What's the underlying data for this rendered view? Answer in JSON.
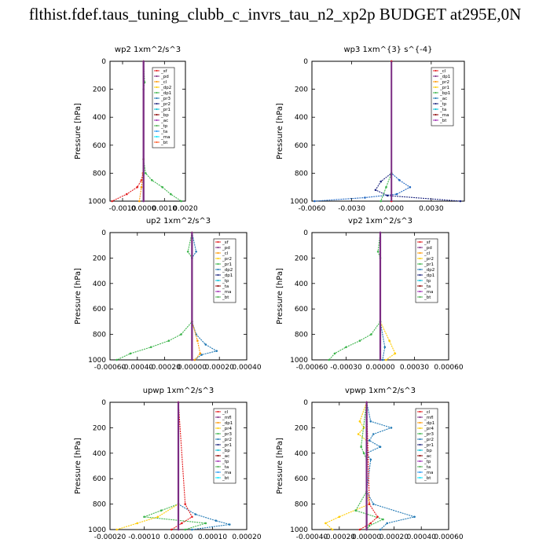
{
  "title": "flthist.fdef.taus_tuning_clubb_c_invrs_tau_n2_xp2p  BUDGET at295E,0N",
  "chart_data": [
    {
      "type": "line",
      "title": "wp2  1xm^2/s^3",
      "ylabel": "Pressure [hPa]",
      "ylim": [
        1000,
        0
      ],
      "yticks": [
        0,
        200,
        400,
        600,
        800,
        1000
      ],
      "xlim": [
        -0.0016,
        0.002
      ],
      "xticks": [
        -0.001,
        0.0,
        0.001,
        0.002
      ],
      "xtick_labels": [
        "-0.0010",
        "0.0000",
        "0.0010",
        "0.0020"
      ],
      "legend": [
        "_sf",
        "_pd",
        "_cl",
        "_dp2",
        "_dp1",
        "_pr3",
        "_pr2",
        "_pr1",
        "_bp",
        "_ac",
        "_tp",
        "_ta",
        "_ma",
        "_bt"
      ],
      "legend_position": "top-right",
      "series": [
        {
          "name": "_dp1",
          "color": "#e31a1c",
          "p": [
            0,
            700,
            800,
            850,
            900,
            950,
            1000
          ],
          "v": [
            0,
            0,
            -3e-05,
            -0.0001,
            -0.0003,
            -0.0008,
            -0.0015
          ]
        },
        {
          "name": "_pr2",
          "color": "#ff9900",
          "p": [
            0,
            700,
            800,
            900,
            1000
          ],
          "v": [
            0,
            0,
            -2e-05,
            -0.0001,
            -0.0002
          ]
        },
        {
          "name": "_pr1",
          "color": "#3cb44b",
          "p": [
            0,
            150,
            200,
            700,
            800,
            850,
            900,
            950,
            1000
          ],
          "v": [
            0,
            5e-05,
            0,
            0,
            0.0001,
            0.0004,
            0.0009,
            0.0013,
            0.0018
          ]
        },
        {
          "name": "_bt",
          "color": "#7b2c83",
          "p": [
            0,
            1000
          ],
          "v": [
            0,
            0
          ]
        }
      ]
    },
    {
      "type": "line",
      "title": "wp3  1xm^{3} s^{-4}",
      "ylabel": "Pressure [hPa]",
      "ylim": [
        1000,
        0
      ],
      "yticks": [
        0,
        200,
        400,
        600,
        800,
        1000
      ],
      "xlim": [
        -0.006,
        0.0055
      ],
      "xticks": [
        -0.006,
        -0.003,
        0.0,
        0.003
      ],
      "xtick_labels": [
        "-0.0060",
        "-0.0030",
        "0.0000",
        "0.0030"
      ],
      "legend": [
        "_cl",
        "_dp1",
        "_pr2",
        "_pr1",
        "_bp1",
        "_ac",
        "_tp",
        "_ta",
        "_ma",
        "_bt"
      ],
      "legend_position": "top-right",
      "series": [
        {
          "name": "_tp",
          "color": "#1f66c1",
          "p": [
            0,
            800,
            850,
            900,
            950,
            975,
            1000
          ],
          "v": [
            0,
            0,
            0.0006,
            0.0014,
            0.0004,
            -0.002,
            -0.0058
          ]
        },
        {
          "name": "_ta",
          "color": "#1a237e",
          "p": [
            0,
            800,
            860,
            920,
            960,
            1000
          ],
          "v": [
            0,
            0,
            -0.0008,
            -0.0012,
            -0.0003,
            0.0052
          ]
        },
        {
          "name": "_ac",
          "color": "#3cb44b",
          "p": [
            0,
            800,
            900,
            1000
          ],
          "v": [
            0,
            0,
            -0.0004,
            -0.0008
          ]
        },
        {
          "name": "_dp1",
          "color": "#e31a1c",
          "p": [
            0,
            1000
          ],
          "v": [
            0,
            0
          ]
        }
      ]
    },
    {
      "type": "line",
      "title": "up2  1xm^2/s^3",
      "ylabel": "Pressure [hPa]",
      "ylim": [
        1000,
        0
      ],
      "yticks": [
        0,
        200,
        400,
        600,
        800,
        1000
      ],
      "xlim": [
        -0.0006,
        0.0004
      ],
      "xticks": [
        -0.0006,
        -0.0004,
        -0.0002,
        0.0,
        0.0002,
        0.0004
      ],
      "xtick_labels": [
        "-0.00060",
        "-0.00040",
        "-0.00020",
        "0.00000",
        "0.00020",
        "0.00040"
      ],
      "legend": [
        "_sf",
        "_pd",
        "_cl",
        "_pr2",
        "_pr1",
        "_dp2",
        "_dp1",
        "_tp",
        "_ta",
        "_ma",
        "_bt"
      ],
      "legend_position": "top-right",
      "series": [
        {
          "name": "_dp1",
          "color": "#3cb44b",
          "p": [
            0,
            150,
            200,
            700,
            800,
            850,
            900,
            950,
            1000
          ],
          "v": [
            0,
            -3e-05,
            0,
            0,
            -8e-05,
            -0.00017,
            -0.0003,
            -0.00045,
            -0.00055
          ]
        },
        {
          "name": "_tp",
          "color": "#1f78b4",
          "p": [
            0,
            150,
            200,
            700,
            800,
            880,
            930,
            960,
            1000
          ],
          "v": [
            0,
            3e-05,
            0,
            0,
            3e-05,
            0.0001,
            0.00018,
            7e-05,
            2e-05
          ]
        },
        {
          "name": "_pr2",
          "color": "#ff9900",
          "p": [
            0,
            700,
            850,
            950,
            1000
          ],
          "v": [
            0,
            0,
            4e-05,
            6e-05,
            2e-05
          ]
        },
        {
          "name": "_bt",
          "color": "#7b2c83",
          "p": [
            0,
            1000
          ],
          "v": [
            0,
            0
          ]
        }
      ]
    },
    {
      "type": "line",
      "title": "vp2  1xm^2/s^3",
      "ylabel": "Pressure [hPa]",
      "ylim": [
        1000,
        0
      ],
      "yticks": [
        0,
        200,
        400,
        600,
        800,
        1000
      ],
      "xlim": [
        -0.0006,
        0.0006
      ],
      "xticks": [
        -0.0006,
        -0.0003,
        0.0,
        0.0003,
        0.0006
      ],
      "xtick_labels": [
        "-0.00060",
        "-0.00030",
        "0.00000",
        "0.00030",
        "0.00060"
      ],
      "legend": [
        "_sf",
        "_pd",
        "_cl",
        "_pr2",
        "_pr1",
        "_dp2",
        "_dp1",
        "_tp",
        "_ta",
        "_ma",
        "_bt"
      ],
      "legend_position": "top-right",
      "series": [
        {
          "name": "_dp1",
          "color": "#3cb44b",
          "p": [
            0,
            150,
            200,
            700,
            800,
            850,
            900,
            950,
            1000
          ],
          "v": [
            0,
            -2e-05,
            0,
            0,
            -8e-05,
            -0.00018,
            -0.0003,
            -0.0004,
            -0.00045
          ]
        },
        {
          "name": "_pr2",
          "color": "#ffcc00",
          "p": [
            0,
            700,
            850,
            950,
            1000
          ],
          "v": [
            0,
            0,
            8e-05,
            0.00013,
            5e-05
          ]
        },
        {
          "name": "_tp",
          "color": "#1f78b4",
          "p": [
            0,
            700,
            900,
            1000
          ],
          "v": [
            0,
            0,
            4e-05,
            2e-05
          ]
        },
        {
          "name": "_bt",
          "color": "#7b2c83",
          "p": [
            0,
            1000
          ],
          "v": [
            0,
            0
          ]
        }
      ]
    },
    {
      "type": "line",
      "title": "upwp  1xm^2/s^3",
      "ylabel": "Pressure [hPa]",
      "ylim": [
        1000,
        0
      ],
      "yticks": [
        0,
        200,
        400,
        600,
        800,
        1000
      ],
      "xlim": [
        -0.0002,
        0.0002
      ],
      "xticks": [
        -0.0002,
        -0.0001,
        0.0,
        0.0001,
        0.0002
      ],
      "xtick_labels": [
        "-0.00020",
        "-0.00010",
        "0.00000",
        "0.00010",
        "0.00020"
      ],
      "legend": [
        "_cl",
        "_mfl",
        "_dp1",
        "_pr4",
        "_pr3",
        "_pr2",
        "_pr1",
        "_bp",
        "_ac",
        "_tp",
        "_ta",
        "_ma",
        "_bt"
      ],
      "legend_position": "top-right",
      "series": [
        {
          "name": "_bp",
          "color": "#3cb44b",
          "p": [
            0,
            800,
            850,
            900,
            950,
            1000
          ],
          "v": [
            0,
            0,
            -5e-05,
            -0.0001,
            8e-05,
            2e-05
          ]
        },
        {
          "name": "_tp",
          "color": "#1f78b4",
          "p": [
            0,
            800,
            880,
            930,
            960,
            1000
          ],
          "v": [
            0,
            0,
            5e-05,
            0.00011,
            0.00015,
            4e-05
          ]
        },
        {
          "name": "_pr1",
          "color": "#ffcc00",
          "p": [
            0,
            800,
            900,
            950,
            1000
          ],
          "v": [
            0,
            0,
            -6e-05,
            -0.00012,
            -0.00018
          ]
        },
        {
          "name": "_dp1",
          "color": "#e31a1c",
          "p": [
            0,
            800,
            900,
            950,
            1000
          ],
          "v": [
            0,
            2e-05,
            4e-05,
            1e-05,
            -2e-05
          ]
        },
        {
          "name": "_bt",
          "color": "#7b2c83",
          "p": [
            0,
            1000
          ],
          "v": [
            0,
            0
          ]
        }
      ]
    },
    {
      "type": "line",
      "title": "vpwp  1xm^2/s^3",
      "ylabel": "Pressure [hPa]",
      "ylim": [
        1000,
        0
      ],
      "yticks": [
        0,
        200,
        400,
        600,
        800,
        1000
      ],
      "xlim": [
        -0.0004,
        0.0006
      ],
      "xticks": [
        -0.0004,
        -0.0002,
        0.0,
        0.0002,
        0.0004,
        0.0006
      ],
      "xtick_labels": [
        "-0.00040",
        "-0.00020",
        "0.00000",
        "0.00020",
        "0.00040",
        "0.00060"
      ],
      "legend": [
        "_cl",
        "_mfl",
        "_dp1",
        "_pr4",
        "_pr3",
        "_pr2",
        "_pr1",
        "_bp",
        "_ac",
        "_tp",
        "_ta",
        "_ma",
        "_bt"
      ],
      "legend_position": "top-right",
      "series": [
        {
          "name": "_tp",
          "color": "#1f78b4",
          "p": [
            0,
            150,
            200,
            250,
            300,
            350,
            400,
            450,
            700,
            800,
            900,
            950,
            1000
          ],
          "v": [
            0,
            3e-05,
            0.00018,
            5e-05,
            2e-05,
            0.0001,
            0.0,
            3e-05,
            0,
            5e-05,
            0.00035,
            0.00015,
            0.0001
          ]
        },
        {
          "name": "_pr1",
          "color": "#ffcc00",
          "p": [
            0,
            150,
            200,
            250,
            300,
            700,
            800,
            900,
            950,
            1000
          ],
          "v": [
            0,
            -5e-05,
            -2e-05,
            -6e-05,
            0,
            0,
            2e-05,
            -0.0002,
            -0.0003,
            -0.00025
          ]
        },
        {
          "name": "_bp",
          "color": "#3cb44b",
          "p": [
            0,
            350,
            400,
            450,
            700,
            850,
            920,
            970,
            1000
          ],
          "v": [
            0,
            -4e-05,
            -2e-05,
            0,
            0,
            -8e-05,
            0.00012,
            2e-05,
            0
          ]
        },
        {
          "name": "_dp1",
          "color": "#e31a1c",
          "p": [
            0,
            800,
            900,
            950,
            1000
          ],
          "v": [
            0,
            2e-05,
            8e-05,
            3e-05,
            -5e-05
          ]
        },
        {
          "name": "_bt",
          "color": "#7b2c83",
          "p": [
            0,
            1000
          ],
          "v": [
            0,
            0
          ]
        }
      ]
    }
  ]
}
